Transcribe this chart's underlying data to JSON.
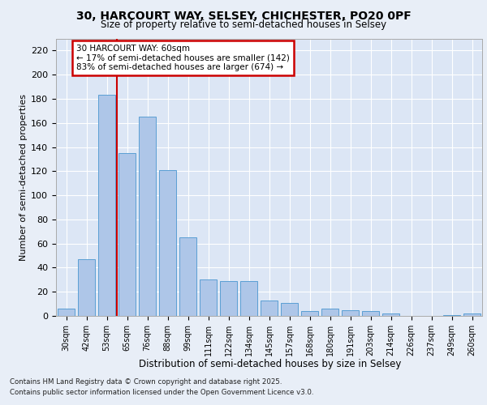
{
  "title1": "30, HARCOURT WAY, SELSEY, CHICHESTER, PO20 0PF",
  "title2": "Size of property relative to semi-detached houses in Selsey",
  "xlabel": "Distribution of semi-detached houses by size in Selsey",
  "ylabel": "Number of semi-detached properties",
  "categories": [
    "30sqm",
    "42sqm",
    "53sqm",
    "65sqm",
    "76sqm",
    "88sqm",
    "99sqm",
    "111sqm",
    "122sqm",
    "134sqm",
    "145sqm",
    "157sqm",
    "168sqm",
    "180sqm",
    "191sqm",
    "203sqm",
    "214sqm",
    "226sqm",
    "237sqm",
    "249sqm",
    "260sqm"
  ],
  "values": [
    6,
    47,
    183,
    135,
    165,
    121,
    65,
    30,
    29,
    29,
    13,
    11,
    4,
    6,
    5,
    4,
    2,
    0,
    0,
    1,
    2
  ],
  "bar_color": "#aec6e8",
  "bar_edge_color": "#5a9fd4",
  "vline_x_index": 2,
  "vline_color": "#cc0000",
  "annotation_text": "30 HARCOURT WAY: 60sqm\n← 17% of semi-detached houses are smaller (142)\n83% of semi-detached houses are larger (674) →",
  "annotation_box_color": "#ffffff",
  "annotation_box_edge": "#cc0000",
  "footnote1": "Contains HM Land Registry data © Crown copyright and database right 2025.",
  "footnote2": "Contains public sector information licensed under the Open Government Licence v3.0.",
  "bg_color": "#e8eef7",
  "plot_bg_color": "#dce6f5",
  "ylim": [
    0,
    230
  ],
  "yticks": [
    0,
    20,
    40,
    60,
    80,
    100,
    120,
    140,
    160,
    180,
    200,
    220
  ]
}
